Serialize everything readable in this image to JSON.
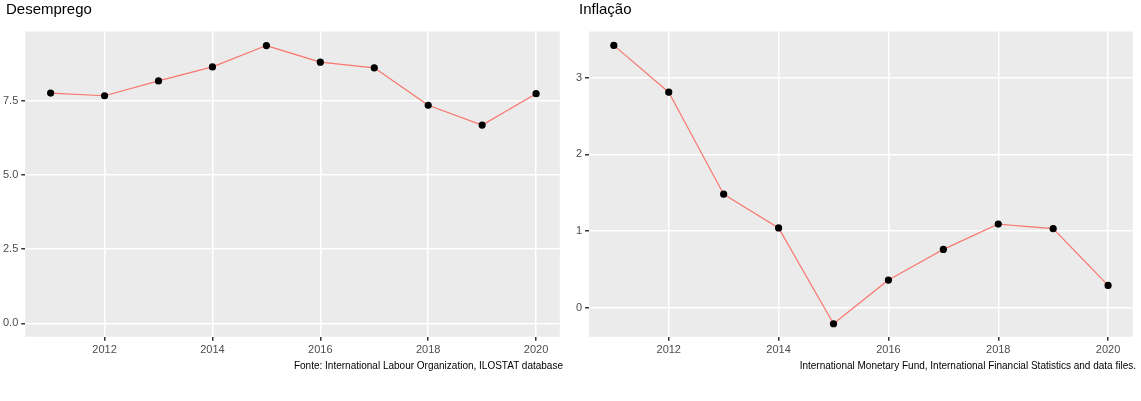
{
  "chart_data": [
    {
      "type": "line",
      "title": "Desemprego",
      "x": [
        2011,
        2012,
        2013,
        2014,
        2015,
        2016,
        2017,
        2018,
        2019,
        2020
      ],
      "series": [
        {
          "color": "#f8766d",
          "values": [
            7.76,
            7.67,
            8.17,
            8.64,
            9.36,
            8.8,
            8.61,
            7.35,
            6.68,
            7.74
          ]
        }
      ],
      "xlim": [
        2010.53,
        2020.44
      ],
      "xticks": [
        2012,
        2014,
        2016,
        2018,
        2020
      ],
      "ylim": [
        -0.45,
        9.83
      ],
      "yticks": [
        {
          "value": 0,
          "label": "0.0"
        },
        {
          "value": 2.5,
          "label": "2.5"
        },
        {
          "value": 5,
          "label": "5.0"
        },
        {
          "value": 7.5,
          "label": "7.5"
        }
      ],
      "grid": true,
      "marker": "circle",
      "line_style": "solid",
      "legend": false,
      "annotations": [
        "Fonte: International Labour Organization, ILOSTAT database"
      ]
    },
    {
      "type": "line",
      "title": "Inflação",
      "x": [
        2011,
        2012,
        2013,
        2014,
        2015,
        2016,
        2017,
        2018,
        2019,
        2020
      ],
      "series": [
        {
          "color": "#f8766d",
          "values": [
            3.42,
            2.81,
            1.48,
            1.04,
            -0.21,
            0.36,
            0.76,
            1.09,
            1.03,
            0.29
          ]
        }
      ],
      "xlim": [
        2010.55,
        2020.45
      ],
      "xticks": [
        2012,
        2014,
        2016,
        2018,
        2020
      ],
      "ylim": [
        -0.38,
        3.6
      ],
      "yticks": [
        0,
        1,
        2,
        3
      ],
      "grid": true,
      "marker": "circle",
      "line_style": "solid",
      "legend": false,
      "annotations": [
        "International Monetary Fund, International Financial Statistics and data files."
      ]
    }
  ]
}
